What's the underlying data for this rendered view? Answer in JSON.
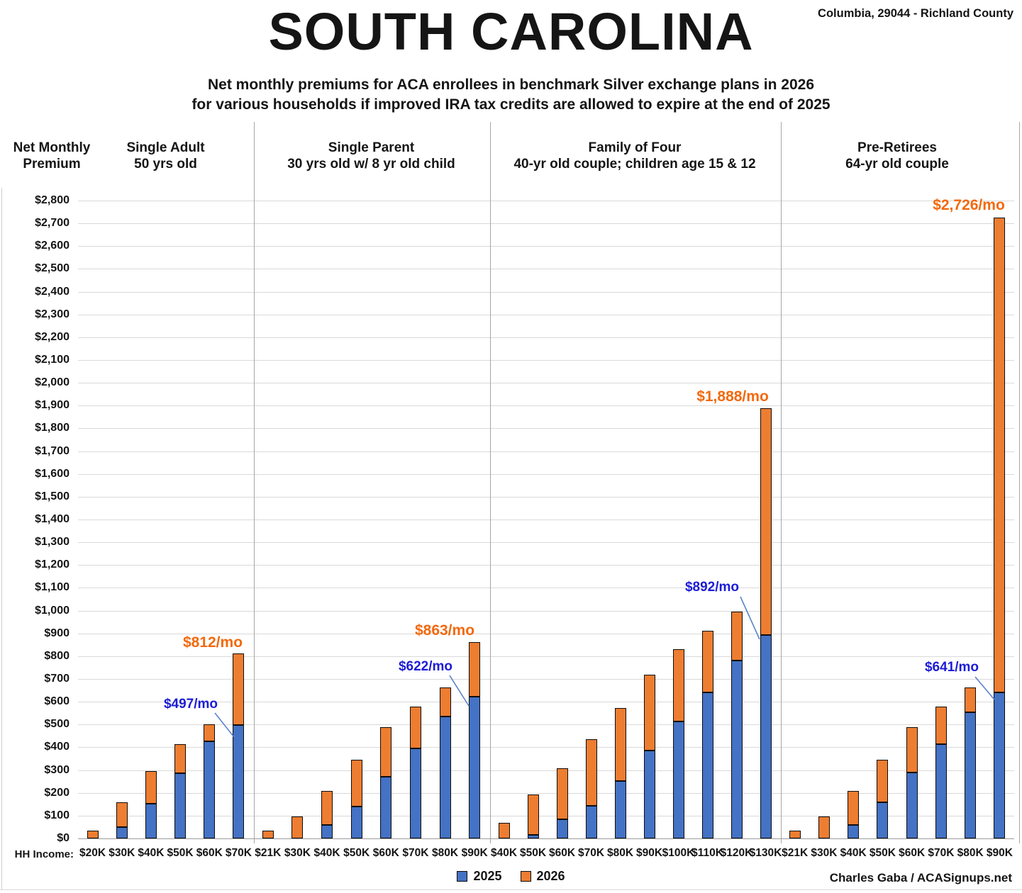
{
  "header": {
    "title": "SOUTH CAROLINA",
    "location": "Columbia, 29044 - Richland County",
    "subtitle_line1": "Net monthly premiums for ACA enrollees in benchmark Silver exchange plans in 2026",
    "subtitle_line2": "for various households if improved IRA tax credits are allowed to expire at the end of 2025"
  },
  "axis": {
    "y_title_line1": "Net Monthly",
    "y_title_line2": "Premium",
    "x_title": "HH Income:"
  },
  "legend": {
    "items": [
      {
        "label": "2025",
        "color": "#4472C4"
      },
      {
        "label": "2026",
        "color": "#ED7D31"
      }
    ]
  },
  "footer": "Charles Gaba / ACASignups.net",
  "colors": {
    "bar_2025": "#4472C4",
    "bar_2026": "#ED7D31",
    "bar_border": "#0d0d0d",
    "annotation_blue": "#1C1CD6",
    "annotation_orange": "#F2690D",
    "gridline": "#D9D9D9",
    "axis_line": "#9B9B9B",
    "divider": "#A6A6A6",
    "callout_line": "#5B83C9"
  },
  "chart_data": {
    "type": "bar",
    "stacked": true,
    "unit": "USD per month",
    "grid": true,
    "legend_position": "bottom-center",
    "y_axis": {
      "min": 0,
      "max": 2800,
      "step": 100,
      "tick_labels": [
        "$0",
        "$100",
        "$200",
        "$300",
        "$400",
        "$500",
        "$600",
        "$700",
        "$800",
        "$900",
        "$1,000",
        "$1,100",
        "$1,200",
        "$1,300",
        "$1,400",
        "$1,500",
        "$1,600",
        "$1,700",
        "$1,800",
        "$1,900",
        "$2,000",
        "$2,100",
        "$2,200",
        "$2,300",
        "$2,400",
        "$2,500",
        "$2,600",
        "$2,700",
        "$2,800"
      ]
    },
    "series_names": [
      "2025",
      "2026"
    ],
    "groups": [
      {
        "title_line1": "Single Adult",
        "title_line2": "50 yrs old",
        "categories": [
          "$20K",
          "$30K",
          "$40K",
          "$50K",
          "$60K",
          "$70K"
        ],
        "series": {
          "2025": [
            0,
            50,
            152,
            285,
            425,
            497
          ],
          "2026": [
            35,
            160,
            295,
            415,
            500,
            812
          ]
        }
      },
      {
        "title_line1": "Single Parent",
        "title_line2": "30 yrs old w/ 8 yr old child",
        "categories": [
          "$21K",
          "$30K",
          "$40K",
          "$50K",
          "$60K",
          "$70K",
          "$80K",
          "$90K"
        ],
        "series": {
          "2025": [
            0,
            0,
            58,
            140,
            270,
            395,
            535,
            622
          ],
          "2026": [
            35,
            95,
            210,
            345,
            490,
            578,
            662,
            863
          ]
        }
      },
      {
        "title_line1": "Family of Four",
        "title_line2": "40-yr old couple; children age 15 & 12",
        "categories": [
          "$40K",
          "$50K",
          "$60K",
          "$70K",
          "$80K",
          "$90K",
          "$100K",
          "$110K",
          "$120K",
          "$130K"
        ],
        "series": {
          "2025": [
            0,
            17,
            83,
            143,
            253,
            386,
            514,
            642,
            780,
            892
          ],
          "2026": [
            70,
            193,
            308,
            437,
            572,
            720,
            830,
            912,
            997,
            1888
          ]
        }
      },
      {
        "title_line1": "Pre-Retirees",
        "title_line2": "64-yr old couple",
        "categories": [
          "$21K",
          "$30K",
          "$40K",
          "$50K",
          "$60K",
          "$70K",
          "$80K",
          "$90K"
        ],
        "series": {
          "2025": [
            0,
            0,
            60,
            158,
            288,
            415,
            553,
            641
          ],
          "2026": [
            35,
            95,
            210,
            345,
            490,
            578,
            662,
            2726
          ]
        }
      }
    ],
    "annotations": [
      {
        "text": "$497/mo",
        "role": "blue",
        "group": 0,
        "category": "$70K",
        "refers_to": "2025"
      },
      {
        "text": "$812/mo",
        "role": "orange",
        "group": 0,
        "category": "$70K",
        "refers_to": "2026"
      },
      {
        "text": "$622/mo",
        "role": "blue",
        "group": 1,
        "category": "$90K",
        "refers_to": "2025"
      },
      {
        "text": "$863/mo",
        "role": "orange",
        "group": 1,
        "category": "$90K",
        "refers_to": "2026"
      },
      {
        "text": "$892/mo",
        "role": "blue",
        "group": 2,
        "category": "$130K",
        "refers_to": "2025"
      },
      {
        "text": "$1,888/mo",
        "role": "orange",
        "group": 2,
        "category": "$130K",
        "refers_to": "2026"
      },
      {
        "text": "$641/mo",
        "role": "blue",
        "group": 3,
        "category": "$90K",
        "refers_to": "2025"
      },
      {
        "text": "$2,726/mo",
        "role": "orange",
        "group": 3,
        "category": "$90K",
        "refers_to": "2026"
      }
    ]
  }
}
